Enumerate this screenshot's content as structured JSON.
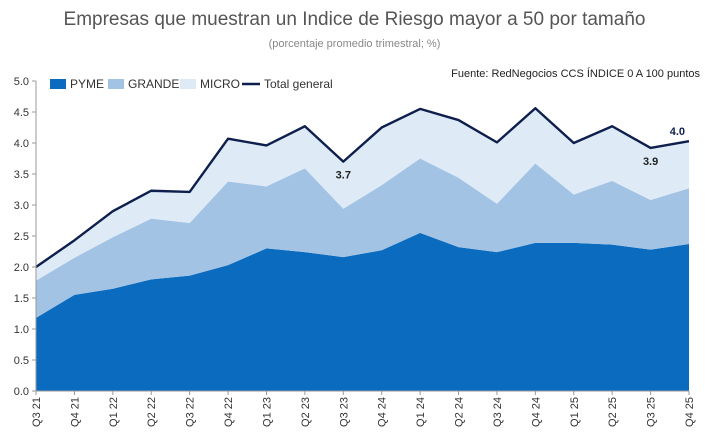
{
  "chart_data": {
    "type": "area",
    "title": "Empresas que muestran un Indice de Riesgo mayor a 50 por tamaño",
    "subtitle": "(porcentaje promedio trimestral; %)",
    "source": "Fuente: RedNegocios CCS ÍNDICE 0 A 100 puntos",
    "categories": [
      "Q3 21",
      "Q4 21",
      "Q1 22",
      "Q2 22",
      "Q3 22",
      "Q4 22",
      "Q1 23",
      "Q2 23",
      "Q3 23",
      "Q4 24",
      "Q1 24",
      "Q2 24",
      "Q3 24",
      "Q4 24",
      "Q1 25",
      "Q2 25",
      "Q3 25",
      "Q4 25"
    ],
    "series": [
      {
        "name": "PYME",
        "color": "#0b6cbf",
        "values": [
          1.18,
          1.55,
          1.65,
          1.8,
          1.86,
          2.03,
          2.3,
          2.24,
          2.16,
          2.27,
          2.55,
          2.32,
          2.24,
          2.39,
          2.39,
          2.36,
          2.28,
          2.37
        ]
      },
      {
        "name": "GRANDE",
        "color": "#a3c3e4",
        "values": [
          0.6,
          0.6,
          0.83,
          0.98,
          0.85,
          1.35,
          1.0,
          1.35,
          0.78,
          1.05,
          1.2,
          1.12,
          0.78,
          1.28,
          0.78,
          1.03,
          0.8,
          0.9
        ]
      },
      {
        "name": "MICRO",
        "color": "#deebf7",
        "values": [
          0.22,
          0.28,
          0.42,
          0.45,
          0.5,
          0.69,
          0.66,
          0.68,
          0.76,
          0.93,
          0.8,
          0.93,
          0.99,
          0.89,
          0.83,
          0.88,
          0.84,
          0.76
        ]
      },
      {
        "name": "Total general",
        "color": "#0e1f4d",
        "values": [
          2.0,
          2.43,
          2.9,
          3.23,
          3.21,
          4.07,
          3.96,
          4.27,
          3.7,
          4.25,
          4.55,
          4.37,
          4.01,
          4.56,
          4.0,
          4.27,
          3.92,
          4.03
        ]
      }
    ],
    "data_labels": [
      {
        "index": 8,
        "text": "3.7"
      },
      {
        "index": 16,
        "text": "3.9"
      },
      {
        "index": 17,
        "text": "4.0"
      }
    ],
    "ylim": [
      0,
      5
    ],
    "yticks": [
      "0.0",
      "0.5",
      "1.0",
      "1.5",
      "2.0",
      "2.5",
      "3.0",
      "3.5",
      "4.0",
      "4.5",
      "5.0"
    ],
    "legend_position": "top-left",
    "grid": false
  }
}
